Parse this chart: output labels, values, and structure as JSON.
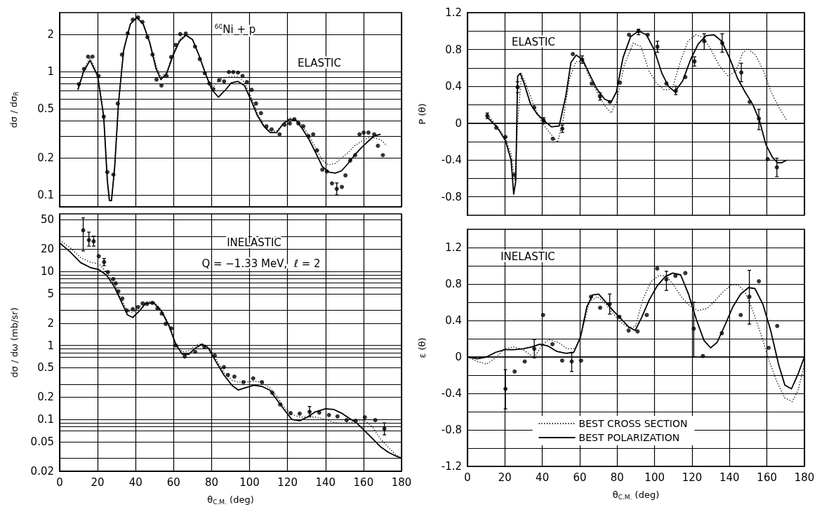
{
  "chart_data": [
    {
      "type": "line",
      "ylabel": "dσ / dσ$_{R}$",
      "annotations": [
        "$^{60}$Ni + p",
        "ELASTIC"
      ],
      "log": true,
      "grid": true,
      "tick_labels": "y",
      "xlim": [
        0,
        180
      ],
      "xticks": [
        0,
        20,
        40,
        60,
        80,
        100,
        120,
        140,
        160,
        180
      ],
      "ylim": [
        0.08,
        3
      ],
      "yticks": [
        0.1,
        0.2,
        {
          "value": 0.3,
          "label": null
        },
        {
          "value": 0.4,
          "label": null
        },
        0.5,
        {
          "value": 0.6,
          "label": null
        },
        {
          "value": 0.7,
          "label": null
        },
        {
          "value": 0.8,
          "label": null
        },
        {
          "value": 0.9,
          "label": null
        },
        1,
        2
      ],
      "series": [
        {
          "type": "scatter",
          "marker": "circle",
          "color": "#000000",
          "x": [
            10.1,
            12.8,
            15,
            17.3,
            20.5,
            23.2,
            25.1,
            28.3,
            30.6,
            32.8,
            35.8,
            38.5,
            41.3,
            43.6,
            46.2,
            48.9,
            51,
            53.6,
            56.3,
            58.7,
            61.1,
            63.5,
            66.4,
            71.3,
            73.8,
            76.4,
            78.8,
            80.9,
            84,
            86.6,
            89.1,
            91.4,
            93.9,
            96.3,
            98.6,
            101.1,
            103.4,
            106,
            108.9,
            111.6,
            115.8,
            118.4,
            121.2,
            123.6,
            125.7,
            128.3,
            131,
            133.5,
            135.5,
            138.3,
            140.7,
            143.4,
            145.9,
            148.6,
            150.5,
            153,
            155.6,
            157.9,
            160.1,
            162.6,
            165.6,
            167.6,
            170.2
          ],
          "values": [
            0.79,
            1.05,
            1.32,
            1.32,
            0.92,
            0.43,
            0.153,
            0.146,
            0.55,
            1.37,
            2.04,
            2.63,
            2.74,
            2.52,
            1.9,
            1.37,
            0.86,
            0.77,
            0.92,
            1.31,
            1.64,
            2.01,
            2.03,
            1.59,
            1.26,
            0.97,
            0.8,
            0.72,
            0.85,
            0.83,
            0.99,
            0.99,
            0.98,
            0.92,
            0.82,
            0.71,
            0.55,
            0.46,
            0.36,
            0.34,
            0.31,
            0.37,
            0.38,
            0.41,
            0.38,
            0.36,
            0.3,
            0.31,
            0.23,
            0.16,
            0.155,
            0.124,
            0.112,
            0.116,
            0.144,
            0.19,
            0.21,
            0.31,
            0.32,
            0.32,
            0.31,
            0.25,
            0.21
          ],
          "errors": [
            null,
            null,
            null,
            null,
            null,
            null,
            null,
            null,
            null,
            null,
            null,
            null,
            null,
            null,
            null,
            null,
            null,
            null,
            null,
            null,
            null,
            null,
            null,
            null,
            null,
            null,
            null,
            null,
            null,
            null,
            null,
            null,
            null,
            null,
            null,
            null,
            null,
            null,
            null,
            null,
            null,
            null,
            null,
            null,
            null,
            null,
            null,
            null,
            null,
            null,
            null,
            null,
            [
              0.1,
              0.125
            ],
            null,
            null,
            null,
            null,
            null,
            null,
            null,
            null,
            null,
            null
          ]
        },
        {
          "type": "line",
          "line_style": "dotted",
          "color": "#000000",
          "x": [
            9.6,
            12.6,
            16,
            20,
            23.2,
            25.1,
            26.2,
            27.3,
            29,
            31,
            33.7,
            37.2,
            40.6,
            44,
            47.4,
            50.8,
            53.3,
            56.3,
            59.7,
            63.1,
            66.5,
            70,
            73.4,
            76.8,
            78.8,
            80.9,
            84.5,
            89,
            93.9,
            97.3,
            100.7,
            104.1,
            107.5,
            110.9,
            114.3,
            117.8,
            121.2,
            124.6,
            128,
            131.4,
            134.8,
            138.3,
            141.7,
            145.1,
            148.5,
            151.9,
            155.3,
            158.7,
            162.2,
            165.6,
            169,
            172.4
          ],
          "values": [
            0.72,
            1.02,
            1.3,
            0.95,
            0.44,
            0.14,
            0.09,
            0.09,
            0.17,
            0.56,
            1.49,
            2.42,
            2.74,
            2.42,
            1.75,
            1.12,
            0.9,
            0.98,
            1.4,
            1.82,
            2.0,
            1.8,
            1.35,
            0.96,
            0.8,
            0.75,
            0.87,
            0.91,
            0.91,
            0.82,
            0.63,
            0.46,
            0.37,
            0.33,
            0.33,
            0.38,
            0.42,
            0.41,
            0.36,
            0.3,
            0.24,
            0.19,
            0.175,
            0.18,
            0.2,
            0.22,
            0.25,
            0.27,
            0.29,
            0.29,
            0.28,
            0.25
          ]
        },
        {
          "type": "line",
          "line_style": "solid",
          "color": "#000000",
          "x": [
            9.6,
            12.6,
            16,
            20,
            23.2,
            25.1,
            26.2,
            27.3,
            29,
            31,
            33.7,
            37.2,
            40.6,
            44,
            47.4,
            50.8,
            53.3,
            56.3,
            59.7,
            63.1,
            66.5,
            70,
            73.4,
            76.8,
            80.2,
            83.6,
            87,
            90.4,
            93.9,
            97.3,
            100.7,
            104.1,
            107.5,
            110.9,
            114.3,
            117.8,
            121.2,
            124.6,
            128,
            131.4,
            134.8,
            138.3,
            141.7,
            145.1,
            148.5,
            151.9,
            155.3,
            158.7,
            162.2,
            165.6,
            169
          ],
          "values": [
            0.71,
            1.0,
            1.23,
            0.92,
            0.43,
            0.13,
            0.09,
            0.09,
            0.17,
            0.56,
            1.49,
            2.42,
            2.74,
            2.42,
            1.72,
            1.05,
            0.86,
            0.96,
            1.35,
            1.76,
            1.97,
            1.81,
            1.35,
            0.96,
            0.71,
            0.62,
            0.7,
            0.81,
            0.83,
            0.77,
            0.59,
            0.44,
            0.36,
            0.32,
            0.32,
            0.38,
            0.41,
            0.4,
            0.34,
            0.28,
            0.22,
            0.17,
            0.153,
            0.15,
            0.157,
            0.18,
            0.21,
            0.24,
            0.27,
            0.3,
            0.31
          ]
        }
      ]
    },
    {
      "type": "line",
      "ylabel": "dσ / dω (mb/sr)",
      "xlabel": "θ$_{C.M.}$ (deg)",
      "annotations": [
        "INELASTIC",
        "Q = −1.33 MeV,  ℓ = 2"
      ],
      "log": true,
      "grid": true,
      "xlim": [
        0,
        180
      ],
      "xticks": [
        0,
        20,
        40,
        60,
        80,
        100,
        120,
        140,
        160,
        180
      ],
      "ylim": [
        0.02,
        60
      ],
      "yticks": [
        0.02,
        {
          "value": 0.03,
          "label": null
        },
        0.05,
        {
          "value": 0.07,
          "label": null
        },
        {
          "value": 0.08,
          "label": null
        },
        {
          "value": 0.09,
          "label": null
        },
        0.1,
        0.2,
        {
          "value": 0.3,
          "label": null
        },
        0.5,
        {
          "value": 0.7,
          "label": null
        },
        {
          "value": 0.8,
          "label": null
        },
        {
          "value": 0.9,
          "label": null
        },
        1,
        2,
        {
          "value": 3,
          "label": null
        },
        5,
        {
          "value": 6,
          "label": null
        },
        {
          "value": 7,
          "label": null
        },
        {
          "value": 8,
          "label": null
        },
        {
          "value": 9,
          "label": null
        },
        10,
        20,
        {
          "value": 30,
          "label": null
        },
        50
      ],
      "series": [
        {
          "type": "scatter",
          "marker": "circle",
          "color": "#000000",
          "x": [
            12.4,
            15.4,
            17.9,
            20.6,
            23.4,
            25.4,
            28.2,
            29.5,
            30.9,
            33,
            35.4,
            38.5,
            41.2,
            43.7,
            46,
            48.8,
            51.5,
            53.8,
            55.8,
            58.8,
            61.1,
            65.9,
            71.4,
            76.2,
            81.7,
            86.5,
            88.6,
            92,
            96.8,
            101.9,
            106.5,
            112,
            116.1,
            121.6,
            126.4,
            131.6,
            136.7,
            141.8,
            146.3,
            151.1,
            155.9,
            160.7,
            166.2,
            171
          ],
          "values": [
            36,
            26.6,
            25.5,
            16.1,
            13.4,
            9.8,
            7.9,
            6.9,
            5.4,
            4.3,
            2.96,
            3.1,
            3.3,
            3.7,
            3.65,
            3.76,
            3.16,
            2.7,
            1.96,
            1.7,
            1.0,
            0.71,
            0.82,
            0.96,
            0.73,
            0.51,
            0.4,
            0.38,
            0.32,
            0.36,
            0.32,
            0.23,
            0.16,
            0.122,
            0.12,
            0.127,
            0.124,
            0.115,
            0.11,
            0.098,
            0.096,
            0.107,
            0.098,
            0.075
          ],
          "errors": [
            [
              19,
              53
            ],
            [
              22,
              34
            ],
            [
              22,
              30
            ],
            null,
            [
              12,
              15
            ],
            null,
            null,
            null,
            null,
            null,
            null,
            null,
            null,
            null,
            null,
            null,
            null,
            null,
            null,
            null,
            null,
            null,
            null,
            null,
            null,
            null,
            null,
            null,
            null,
            null,
            null,
            null,
            null,
            null,
            null,
            [
              0.11,
              0.15
            ],
            null,
            null,
            null,
            null,
            null,
            null,
            null,
            [
              0.062,
              0.09
            ]
          ]
        },
        {
          "type": "line",
          "line_style": "dotted",
          "color": "#000000",
          "x": [
            0,
            5.5,
            11,
            16.5,
            20.6,
            24.7,
            28.8,
            32.3,
            35.7,
            38.5,
            41.9,
            45.3,
            49.5,
            53.6,
            57.7,
            61.1,
            64.6,
            68,
            71.4,
            74.9,
            78.3,
            82.4,
            86.5,
            90.7,
            94.1,
            98.2,
            102.3,
            106.5,
            110.6,
            114.7,
            118.8,
            122.3,
            126.4,
            130.5,
            134.6,
            140.1,
            144.2,
            148.4,
            152.5,
            156.6,
            160.7,
            164.8,
            168.9,
            173.1,
            177.2,
            180
          ],
          "values": [
            26.5,
            21,
            15.4,
            13.2,
            12.7,
            9.8,
            6.7,
            4.3,
            2.92,
            2.8,
            3.3,
            3.86,
            3.95,
            3.04,
            1.89,
            1.08,
            0.82,
            0.85,
            1.0,
            1.06,
            0.96,
            0.65,
            0.43,
            0.34,
            0.32,
            0.32,
            0.33,
            0.32,
            0.27,
            0.2,
            0.14,
            0.117,
            0.108,
            0.108,
            0.108,
            0.1,
            0.092,
            0.089,
            0.09,
            0.096,
            0.096,
            0.079,
            0.055,
            0.042,
            0.033,
            0.03
          ]
        },
        {
          "type": "line",
          "line_style": "solid",
          "color": "#000000",
          "x": [
            0,
            5.5,
            11,
            16.5,
            20.6,
            24.7,
            28.8,
            32.3,
            35.7,
            38.5,
            41.9,
            45.3,
            49.5,
            53.6,
            57.7,
            61.1,
            64.6,
            68,
            71.4,
            74.9,
            78.3,
            82.4,
            86.5,
            90.7,
            94.1,
            98.2,
            102.3,
            106.5,
            110.6,
            114.7,
            118.8,
            122.3,
            126.4,
            130.5,
            134.6,
            140.1,
            144.2,
            148.4,
            152.5,
            156.6,
            160.7,
            164.8,
            168.9,
            173.1,
            177.2,
            180
          ],
          "values": [
            24.3,
            18.4,
            13.2,
            11.2,
            10.6,
            8.9,
            6.2,
            4.0,
            2.59,
            2.39,
            2.92,
            3.7,
            3.76,
            2.92,
            1.81,
            1.04,
            0.76,
            0.76,
            0.92,
            1.04,
            0.92,
            0.6,
            0.4,
            0.29,
            0.25,
            0.27,
            0.29,
            0.28,
            0.25,
            0.18,
            0.13,
            0.1,
            0.096,
            0.108,
            0.127,
            0.14,
            0.137,
            0.122,
            0.104,
            0.089,
            0.07,
            0.055,
            0.043,
            0.036,
            0.032,
            0.03
          ]
        }
      ]
    },
    {
      "type": "line",
      "ylabel": "P (θ)",
      "annotations": [
        "ELASTIC"
      ],
      "grid": true,
      "tick_labels": "y",
      "xlim": [
        0,
        180
      ],
      "xticks": [
        0,
        20,
        40,
        60,
        80,
        100,
        120,
        140,
        160,
        180
      ],
      "ylim": [
        -1.0,
        1.2
      ],
      "yticks": [
        -0.8,
        {
          "value": -0.6,
          "label": null
        },
        -0.4,
        {
          "value": -0.2,
          "label": null
        },
        0,
        {
          "value": 0.2,
          "label": null
        },
        0.4,
        {
          "value": 0.6,
          "label": null
        },
        0.8,
        {
          "value": 1.0,
          "label": null
        },
        1.2
      ],
      "series": [
        {
          "type": "scatter",
          "marker": "circle",
          "color": "#000000",
          "x": [
            10.6,
            15.4,
            20.3,
            25,
            26.8,
            35.7,
            40.7,
            45.6,
            50.7,
            56.3,
            61.3,
            66.4,
            70.8,
            76.1,
            81.4,
            86.3,
            91.4,
            96.3,
            101.5,
            106.3,
            111.3,
            116.4,
            121.3,
            126.5,
            136.1,
            146.3,
            150.8,
            155.7,
            160.4,
            165.3
          ],
          "values": [
            0.08,
            -0.05,
            -0.15,
            -0.56,
            0.39,
            0.17,
            0.03,
            -0.17,
            -0.06,
            0.75,
            0.69,
            0.43,
            0.29,
            0.23,
            0.44,
            0.96,
            1.0,
            0.96,
            0.83,
            0.43,
            0.35,
            0.5,
            0.67,
            0.89,
            0.87,
            0.55,
            0.23,
            0.05,
            -0.39,
            -0.48
          ],
          "errors": [
            [
              0.05,
              0.11
            ],
            null,
            null,
            null,
            [
              0.33,
              0.45
            ],
            null,
            [
              0,
              0.06
            ],
            null,
            [
              -0.1,
              -0.02
            ],
            null,
            [
              0.65,
              0.73
            ],
            null,
            [
              0.25,
              0.33
            ],
            null,
            null,
            null,
            [
              0.96,
              1.02
            ],
            null,
            [
              0.77,
              0.89
            ],
            null,
            [
              0.31,
              0.4
            ],
            null,
            [
              0.62,
              0.72
            ],
            [
              0.8,
              0.97
            ],
            [
              0.77,
              0.97
            ],
            [
              0.45,
              0.65
            ],
            null,
            [
              -0.07,
              0.15
            ],
            null,
            [
              -0.58,
              -0.38
            ]
          ]
        },
        {
          "type": "line",
          "line_style": "dotted",
          "color": "#000000",
          "x": [
            10.8,
            15.7,
            20.3,
            23.3,
            25.4,
            26.8,
            28.9,
            31.7,
            35.8,
            40,
            44.2,
            48.1,
            51.1,
            54.6,
            58.1,
            61.5,
            65,
            69.9,
            74,
            76.8,
            79.6,
            83.8,
            88.6,
            92.8,
            96.9,
            101.1,
            105.3,
            109.4,
            113.6,
            117.8,
            121.9,
            126.1,
            130.3,
            134.4,
            139.3,
            143.5,
            147,
            149.7,
            153.9,
            158.1,
            162.2,
            166.4,
            170.6
          ],
          "values": [
            0.09,
            -0.03,
            -0.16,
            -0.34,
            -0.63,
            0,
            0.54,
            0.4,
            0.17,
            0,
            -0.11,
            -0.21,
            0.03,
            0.49,
            0.67,
            0.67,
            0.51,
            0.31,
            0.17,
            0.11,
            0.23,
            0.63,
            0.87,
            0.83,
            0.57,
            0.43,
            0.36,
            0.37,
            0.66,
            0.89,
            0.96,
            0.93,
            0.79,
            0.63,
            0.51,
            0.57,
            0.76,
            0.81,
            0.74,
            0.57,
            0.34,
            0.17,
            0.03
          ]
        },
        {
          "type": "line",
          "line_style": "solid",
          "color": "#000000",
          "x": [
            10.8,
            15.7,
            20.3,
            23.3,
            24.7,
            25.8,
            26.8,
            28.2,
            30.3,
            33.8,
            37.2,
            40.7,
            44.9,
            49,
            52.5,
            55.3,
            58.1,
            61.5,
            65,
            69.2,
            73.3,
            76.8,
            79.6,
            83.1,
            87.2,
            91.4,
            95.6,
            99.7,
            103.9,
            107.4,
            110.8,
            115,
            119.2,
            123.3,
            127.5,
            131.7,
            135.8,
            140,
            144.2,
            148.3,
            152.5,
            156,
            159.4,
            162.9,
            165.7,
            167.8,
            170.6
          ],
          "values": [
            0.06,
            -0.04,
            -0.19,
            -0.4,
            -0.77,
            -0.63,
            0.51,
            0.54,
            0.43,
            0.2,
            0.1,
            0.03,
            -0.04,
            -0.03,
            0.29,
            0.66,
            0.74,
            0.69,
            0.54,
            0.37,
            0.26,
            0.23,
            0.34,
            0.71,
            0.94,
            1.0,
            0.96,
            0.8,
            0.54,
            0.4,
            0.34,
            0.46,
            0.69,
            0.86,
            0.95,
            0.96,
            0.89,
            0.71,
            0.49,
            0.34,
            0.2,
            0.03,
            -0.23,
            -0.37,
            -0.43,
            -0.43,
            -0.4
          ]
        }
      ]
    },
    {
      "type": "line",
      "ylabel": "ε (θ)",
      "xlabel": "θ$_{C.M.}$ (deg)",
      "annotations": [
        "INELASTIC"
      ],
      "grid": true,
      "legend": "bottom",
      "xlim": [
        0,
        180
      ],
      "xticks": [
        0,
        20,
        40,
        60,
        80,
        100,
        120,
        140,
        160,
        180
      ],
      "ylim": [
        -1.2,
        1.4
      ],
      "yticks": [
        -1.2,
        {
          "value": -1.0,
          "label": null
        },
        -0.8,
        {
          "value": -0.6,
          "label": null
        },
        -0.4,
        {
          "value": -0.2,
          "label": null
        },
        0,
        {
          "value": 0.2,
          "label": null
        },
        0.4,
        {
          "value": 0.6,
          "label": null
        },
        0.8,
        {
          "value": 1.0,
          "label": null
        },
        1.2
      ],
      "series": [
        {
          "type": "scatter",
          "marker": "circle",
          "color": "#000000",
          "x": [
            20.3,
            25.2,
            30.6,
            35.7,
            40.4,
            45.4,
            50.6,
            55.7,
            60.7,
            66,
            70.9,
            76,
            81.2,
            86.1,
            90.9,
            95.8,
            101.4,
            106.3,
            111.1,
            116.4,
            120.9,
            125.8,
            135.9,
            146,
            150.6,
            155.7,
            160.9,
            165.5
          ],
          "values": [
            -0.35,
            -0.16,
            -0.05,
            0.09,
            0.46,
            0.14,
            -0.04,
            -0.05,
            -0.04,
            0.66,
            0.54,
            0.58,
            0.44,
            0.29,
            0.28,
            0.46,
            0.97,
            0.85,
            0.89,
            0.92,
            0.31,
            0.01,
            0.26,
            0.46,
            0.66,
            0.83,
            0.1,
            0.34
          ],
          "errors": [
            [
              -0.57,
              -0.14
            ],
            null,
            null,
            [
              -0.01,
              0.19
            ],
            null,
            null,
            null,
            [
              -0.16,
              0.05
            ],
            null,
            null,
            null,
            [
              0.47,
              0.69
            ],
            null,
            null,
            null,
            null,
            null,
            [
              0.73,
              0.94
            ],
            null,
            null,
            [
              0,
              0.6
            ],
            null,
            null,
            null,
            [
              0.36,
              0.95
            ],
            null,
            null,
            null
          ]
        },
        {
          "type": "line",
          "line_style": "dotted",
          "color": "#000000",
          "name": "BEST CROSS SECTION",
          "x": [
            0,
            5.3,
            10.2,
            15,
            19.9,
            24.8,
            29.7,
            35.7,
            39.4,
            43.6,
            48.5,
            53.3,
            57.5,
            61,
            65.2,
            69.4,
            73.5,
            77.7,
            81.9,
            86.1,
            89.6,
            93.7,
            97.9,
            102.1,
            106.3,
            110.4,
            114.6,
            118.8,
            123,
            127.9,
            132,
            136.9,
            141.1,
            144.6,
            148.1,
            152.2,
            157.1,
            161.3,
            165.5,
            169.6,
            173.5,
            176.6,
            180
          ],
          "values": [
            0,
            -0.05,
            -0.08,
            -0.01,
            0.09,
            0.11,
            0.08,
            -0.01,
            0.12,
            0.19,
            0.16,
            0.09,
            0.09,
            0.26,
            0.61,
            0.66,
            0.59,
            0.48,
            0.38,
            0.32,
            0.33,
            0.63,
            0.82,
            0.89,
            0.89,
            0.78,
            0.65,
            0.56,
            0.51,
            0.53,
            0.61,
            0.72,
            0.79,
            0.79,
            0.72,
            0.52,
            0.23,
            -0.05,
            -0.28,
            -0.45,
            -0.49,
            -0.37,
            -0.08
          ]
        },
        {
          "type": "line",
          "line_style": "solid",
          "color": "#000000",
          "name": "BEST POLARIZATION",
          "x": [
            0,
            5.3,
            10.2,
            15,
            19.9,
            24.8,
            29.7,
            34.5,
            38.7,
            43.1,
            47.8,
            52.6,
            56.8,
            60.3,
            63.8,
            66.9,
            70.1,
            73.5,
            77.7,
            81.9,
            86.1,
            89.6,
            93,
            97.2,
            101.4,
            105.6,
            109.7,
            113.9,
            118.1,
            122.3,
            126.4,
            129.9,
            133.4,
            137.6,
            141.8,
            146,
            150.1,
            153.6,
            157.8,
            162,
            166.2,
            169.6,
            173.1,
            176.6,
            180
          ],
          "values": [
            0,
            -0.02,
            0,
            0.05,
            0.08,
            0.08,
            0.09,
            0.11,
            0.14,
            0.12,
            0.06,
            0.04,
            0.05,
            0.21,
            0.55,
            0.68,
            0.69,
            0.61,
            0.51,
            0.42,
            0.33,
            0.29,
            0.43,
            0.63,
            0.78,
            0.88,
            0.92,
            0.9,
            0.69,
            0.41,
            0.18,
            0.1,
            0.16,
            0.35,
            0.55,
            0.69,
            0.76,
            0.75,
            0.58,
            0.29,
            -0.08,
            -0.31,
            -0.35,
            -0.19,
            0
          ]
        }
      ]
    }
  ]
}
